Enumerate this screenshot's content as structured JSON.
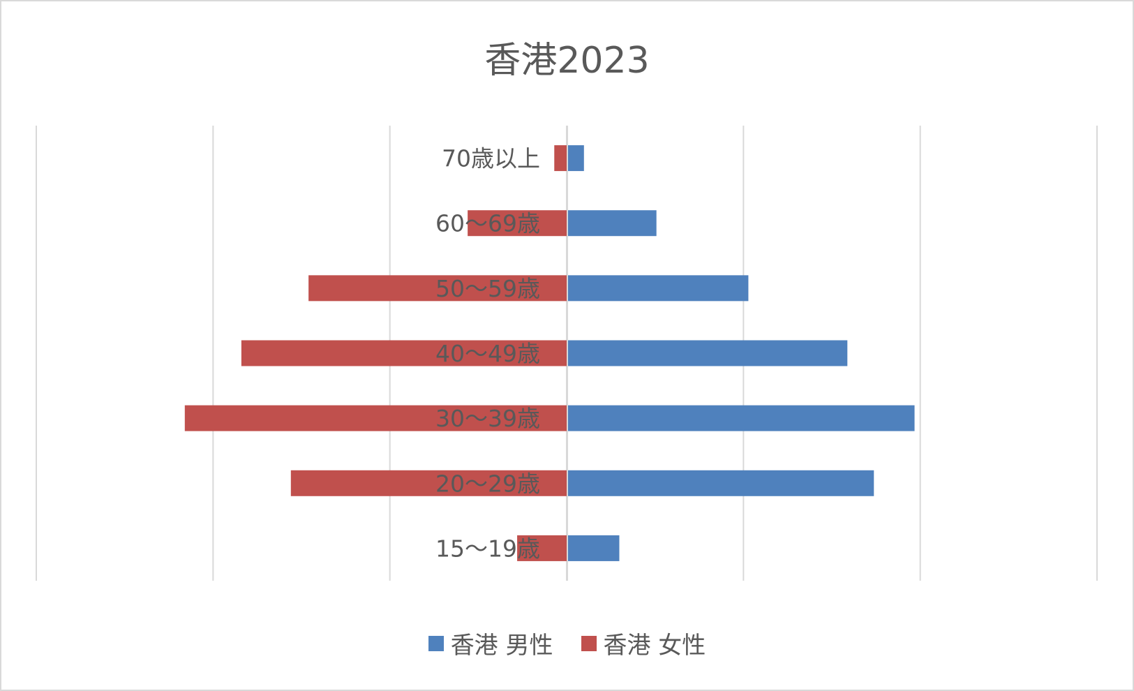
{
  "chart_data": {
    "type": "bar",
    "orientation": "horizontal-diverging",
    "title": "香港2023",
    "categories": [
      "15〜19歳",
      "20〜29歳",
      "30〜39歳",
      "40〜49歳",
      "50〜59歳",
      "60〜69歳",
      "70歳以上"
    ],
    "series": [
      {
        "name": "香港 男性",
        "color": "#4f81bd",
        "side": "right",
        "values": [
          1.45,
          8.65,
          9.8,
          7.9,
          5.1,
          2.5,
          0.45
        ]
      },
      {
        "name": "香港 女性",
        "color": "#c0504d",
        "side": "left",
        "values": [
          1.4,
          7.8,
          10.8,
          9.2,
          7.3,
          2.8,
          0.35
        ]
      }
    ],
    "xlim": [
      -15,
      15
    ],
    "grid": true,
    "legend_position": "bottom"
  }
}
